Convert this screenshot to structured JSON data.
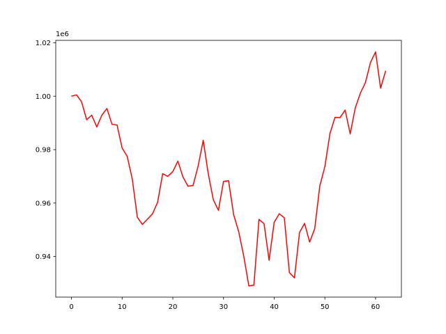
{
  "chart_data": {
    "type": "line",
    "title": "",
    "xlabel": "",
    "ylabel": "",
    "y_offset_label": "1e6",
    "xlim": [
      -3.1,
      65.1
    ],
    "ylim": [
      0.9248,
      1.0209
    ],
    "x_ticks": [
      0,
      10,
      20,
      30,
      40,
      50,
      60
    ],
    "y_ticks": [
      0.94,
      0.96,
      0.98,
      1.0,
      1.02
    ],
    "y_tick_labels": [
      "0.94",
      "0.96",
      "0.98",
      "1.00",
      "1.02"
    ],
    "grid": false,
    "legend": "none",
    "series": [
      {
        "color": "#ff0000",
        "x": [
          0,
          1,
          2,
          3,
          4,
          5,
          6,
          7,
          8,
          9,
          10,
          11,
          12,
          13,
          14,
          15,
          16,
          17,
          18,
          19,
          20,
          21,
          22,
          23,
          24,
          25,
          26,
          27,
          28,
          29,
          30,
          31,
          32,
          33,
          34,
          35,
          36,
          37,
          38,
          39,
          40,
          41,
          42,
          43,
          44,
          45,
          46,
          47,
          48,
          49,
          50,
          51,
          52,
          53,
          54,
          55,
          56,
          57,
          58,
          59,
          60,
          61,
          62
        ],
        "y": [
          1.0,
          1.0005,
          0.9979,
          0.9912,
          0.9929,
          0.9885,
          0.9929,
          0.9954,
          0.9895,
          0.9892,
          0.9806,
          0.9775,
          0.969,
          0.9547,
          0.952,
          0.954,
          0.956,
          0.9603,
          0.971,
          0.97,
          0.9718,
          0.9757,
          0.9698,
          0.9663,
          0.9666,
          0.9739,
          0.9835,
          0.9709,
          0.9612,
          0.9573,
          0.9681,
          0.9684,
          0.9557,
          0.9493,
          0.9401,
          0.929,
          0.9293,
          0.9539,
          0.9523,
          0.9386,
          0.9528,
          0.956,
          0.9545,
          0.934,
          0.932,
          0.949,
          0.9524,
          0.9454,
          0.9504,
          0.9664,
          0.9736,
          0.986,
          0.9921,
          0.992,
          0.9948,
          0.9859,
          0.9956,
          1.0011,
          1.0051,
          1.0126,
          1.0166,
          1.003,
          1.0095
        ]
      }
    ]
  }
}
